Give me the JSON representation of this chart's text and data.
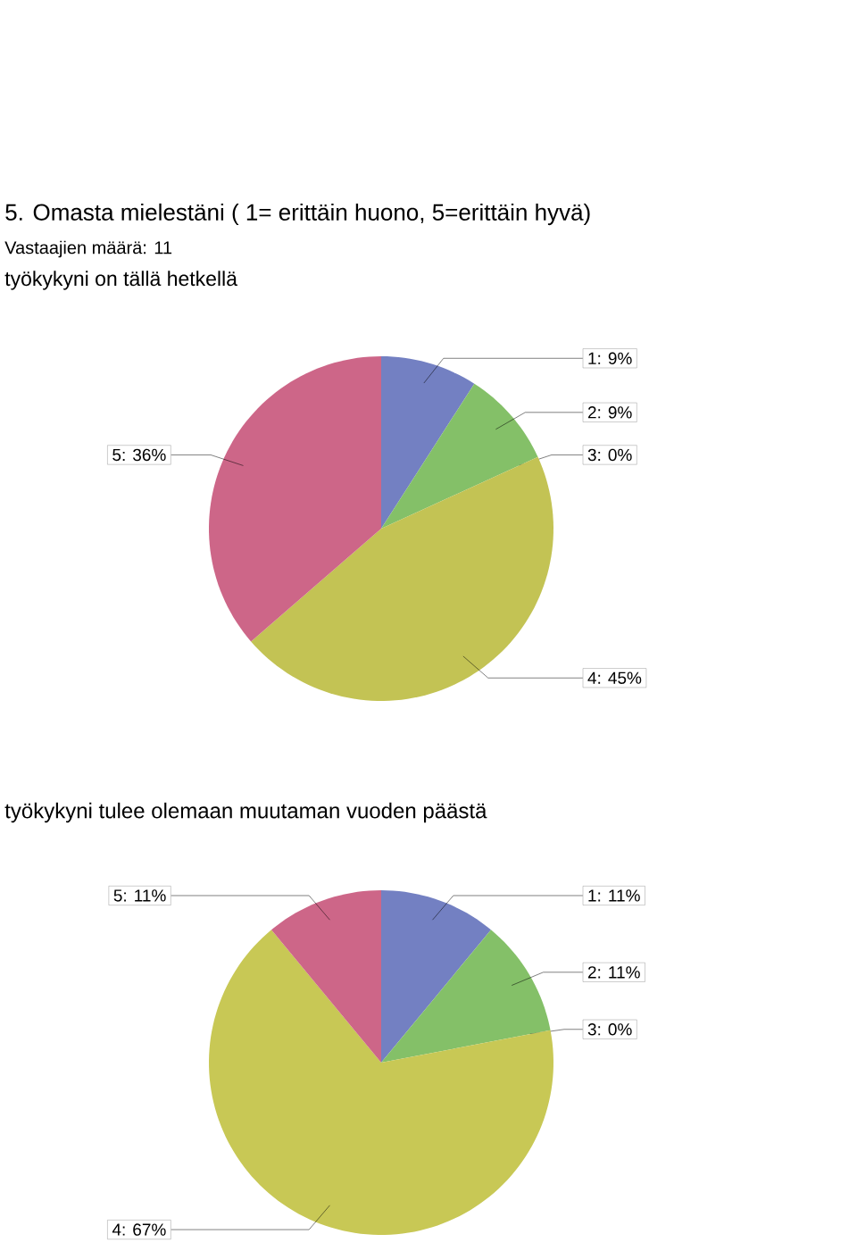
{
  "chart_data": [
    {
      "type": "pie",
      "title": "5. Omasta mielestäni ( 1= erittäin huono, 5=erittäin hyvä)",
      "subtitle": "Vastaajien määrä: 11",
      "annotations": [
        "työkykyni on tällä hetkellä"
      ],
      "categories": [
        "1: 9%",
        "2: 9%",
        "3: 0%",
        "4: 45%",
        "5: 36%"
      ],
      "values": [
        9,
        9,
        0,
        45,
        36
      ],
      "colors": [
        "#7380c2",
        "#84c068",
        null,
        "#c3c354",
        "#cd6688"
      ]
    },
    {
      "type": "pie",
      "title": "työkykyni tulee olemaan muutaman vuoden päästä",
      "categories": [
        "1: 11%",
        "2: 11%",
        "3: 0%",
        "4: 67%",
        "5: 11%"
      ],
      "values": [
        11,
        11,
        0,
        67,
        11
      ],
      "colors": [
        "#7380c2",
        "#84c068",
        null,
        "#c8c855",
        "#cd6688"
      ]
    }
  ]
}
